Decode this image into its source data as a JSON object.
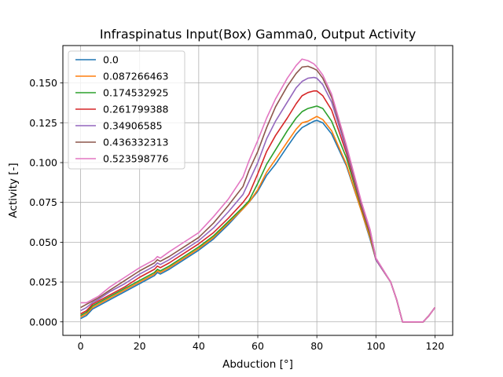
{
  "chart_data": {
    "type": "line",
    "title": "Infraspinatus Input(Box) Gamma0, Output Activity",
    "xlabel": "Abduction [°]",
    "ylabel": "Activity [-]",
    "xlim": [
      -6,
      126
    ],
    "ylim": [
      -0.0085,
      0.1735
    ],
    "xticks": [
      0,
      20,
      40,
      60,
      80,
      100,
      120
    ],
    "yticks": [
      0.0,
      0.025,
      0.05,
      0.075,
      0.1,
      0.125,
      0.15
    ],
    "ytick_labels": [
      "0.000",
      "0.025",
      "0.050",
      "0.075",
      "0.100",
      "0.125",
      "0.150"
    ],
    "grid": true,
    "legend_position": "upper-left",
    "x": [
      0,
      2,
      4,
      6,
      10,
      15,
      20,
      25,
      26,
      27,
      30,
      35,
      40,
      45,
      50,
      55,
      57,
      60,
      63,
      66,
      70,
      73,
      75,
      77,
      79,
      80,
      82,
      85,
      90,
      95,
      98,
      100,
      105,
      107,
      109,
      112,
      116,
      118,
      120
    ],
    "series": [
      {
        "name": "0.0",
        "color": "#1f77b4",
        "values": [
          0.002,
          0.004,
          0.008,
          0.01,
          0.014,
          0.019,
          0.024,
          0.029,
          0.031,
          0.03,
          0.033,
          0.039,
          0.045,
          0.052,
          0.061,
          0.071,
          0.075,
          0.082,
          0.092,
          0.099,
          0.11,
          0.118,
          0.122,
          0.124,
          0.126,
          0.1265,
          0.125,
          0.118,
          0.098,
          0.07,
          0.052,
          0.039,
          0.025,
          0.014,
          0.0,
          0.0,
          0.0,
          0.004,
          0.009
        ]
      },
      {
        "name": "0.087266463",
        "color": "#ff7f0e",
        "values": [
          0.003,
          0.005,
          0.009,
          0.011,
          0.015,
          0.02,
          0.025,
          0.03,
          0.032,
          0.031,
          0.034,
          0.04,
          0.046,
          0.053,
          0.062,
          0.071,
          0.075,
          0.083,
          0.094,
          0.102,
          0.113,
          0.121,
          0.125,
          0.126,
          0.128,
          0.129,
          0.127,
          0.12,
          0.099,
          0.07,
          0.053,
          0.039,
          0.025,
          0.014,
          0.0,
          0.0,
          0.0,
          0.004,
          0.009
        ]
      },
      {
        "name": "0.174532925",
        "color": "#2ca02c",
        "values": [
          0.004,
          0.006,
          0.01,
          0.012,
          0.016,
          0.021,
          0.026,
          0.031,
          0.033,
          0.032,
          0.035,
          0.041,
          0.047,
          0.054,
          0.063,
          0.072,
          0.076,
          0.087,
          0.099,
          0.108,
          0.12,
          0.128,
          0.132,
          0.134,
          0.135,
          0.1355,
          0.134,
          0.126,
          0.103,
          0.072,
          0.055,
          0.039,
          0.025,
          0.014,
          0.0,
          0.0,
          0.0,
          0.004,
          0.009
        ]
      },
      {
        "name": "0.261799388",
        "color": "#d62728",
        "values": [
          0.005,
          0.007,
          0.011,
          0.013,
          0.017,
          0.022,
          0.028,
          0.033,
          0.035,
          0.034,
          0.037,
          0.043,
          0.049,
          0.056,
          0.065,
          0.075,
          0.08,
          0.093,
          0.107,
          0.117,
          0.128,
          0.137,
          0.142,
          0.144,
          0.145,
          0.145,
          0.142,
          0.133,
          0.106,
          0.073,
          0.056,
          0.039,
          0.025,
          0.014,
          0.0,
          0.0,
          0.0,
          0.004,
          0.009
        ]
      },
      {
        "name": "0.34906585",
        "color": "#9467bd",
        "values": [
          0.007,
          0.009,
          0.012,
          0.014,
          0.019,
          0.024,
          0.03,
          0.035,
          0.037,
          0.036,
          0.039,
          0.045,
          0.051,
          0.059,
          0.069,
          0.08,
          0.088,
          0.1,
          0.115,
          0.126,
          0.138,
          0.147,
          0.151,
          0.153,
          0.1535,
          0.153,
          0.149,
          0.138,
          0.108,
          0.074,
          0.057,
          0.039,
          0.025,
          0.014,
          0.0,
          0.0,
          0.0,
          0.004,
          0.009
        ]
      },
      {
        "name": "0.436332313",
        "color": "#8c564b",
        "values": [
          0.009,
          0.011,
          0.013,
          0.015,
          0.02,
          0.026,
          0.032,
          0.037,
          0.039,
          0.038,
          0.041,
          0.047,
          0.053,
          0.062,
          0.073,
          0.085,
          0.095,
          0.107,
          0.122,
          0.135,
          0.148,
          0.156,
          0.16,
          0.1605,
          0.159,
          0.158,
          0.153,
          0.141,
          0.11,
          0.075,
          0.058,
          0.04,
          0.025,
          0.014,
          0.0,
          0.0,
          0.0,
          0.004,
          0.009
        ]
      },
      {
        "name": "0.523598776",
        "color": "#e377c2",
        "values": [
          0.012,
          0.012,
          0.014,
          0.016,
          0.022,
          0.028,
          0.034,
          0.039,
          0.041,
          0.04,
          0.044,
          0.05,
          0.056,
          0.066,
          0.077,
          0.091,
          0.101,
          0.114,
          0.128,
          0.14,
          0.153,
          0.161,
          0.165,
          0.164,
          0.162,
          0.16,
          0.155,
          0.143,
          0.111,
          0.076,
          0.058,
          0.04,
          0.025,
          0.014,
          0.0,
          0.0,
          0.0,
          0.004,
          0.009
        ]
      }
    ]
  }
}
